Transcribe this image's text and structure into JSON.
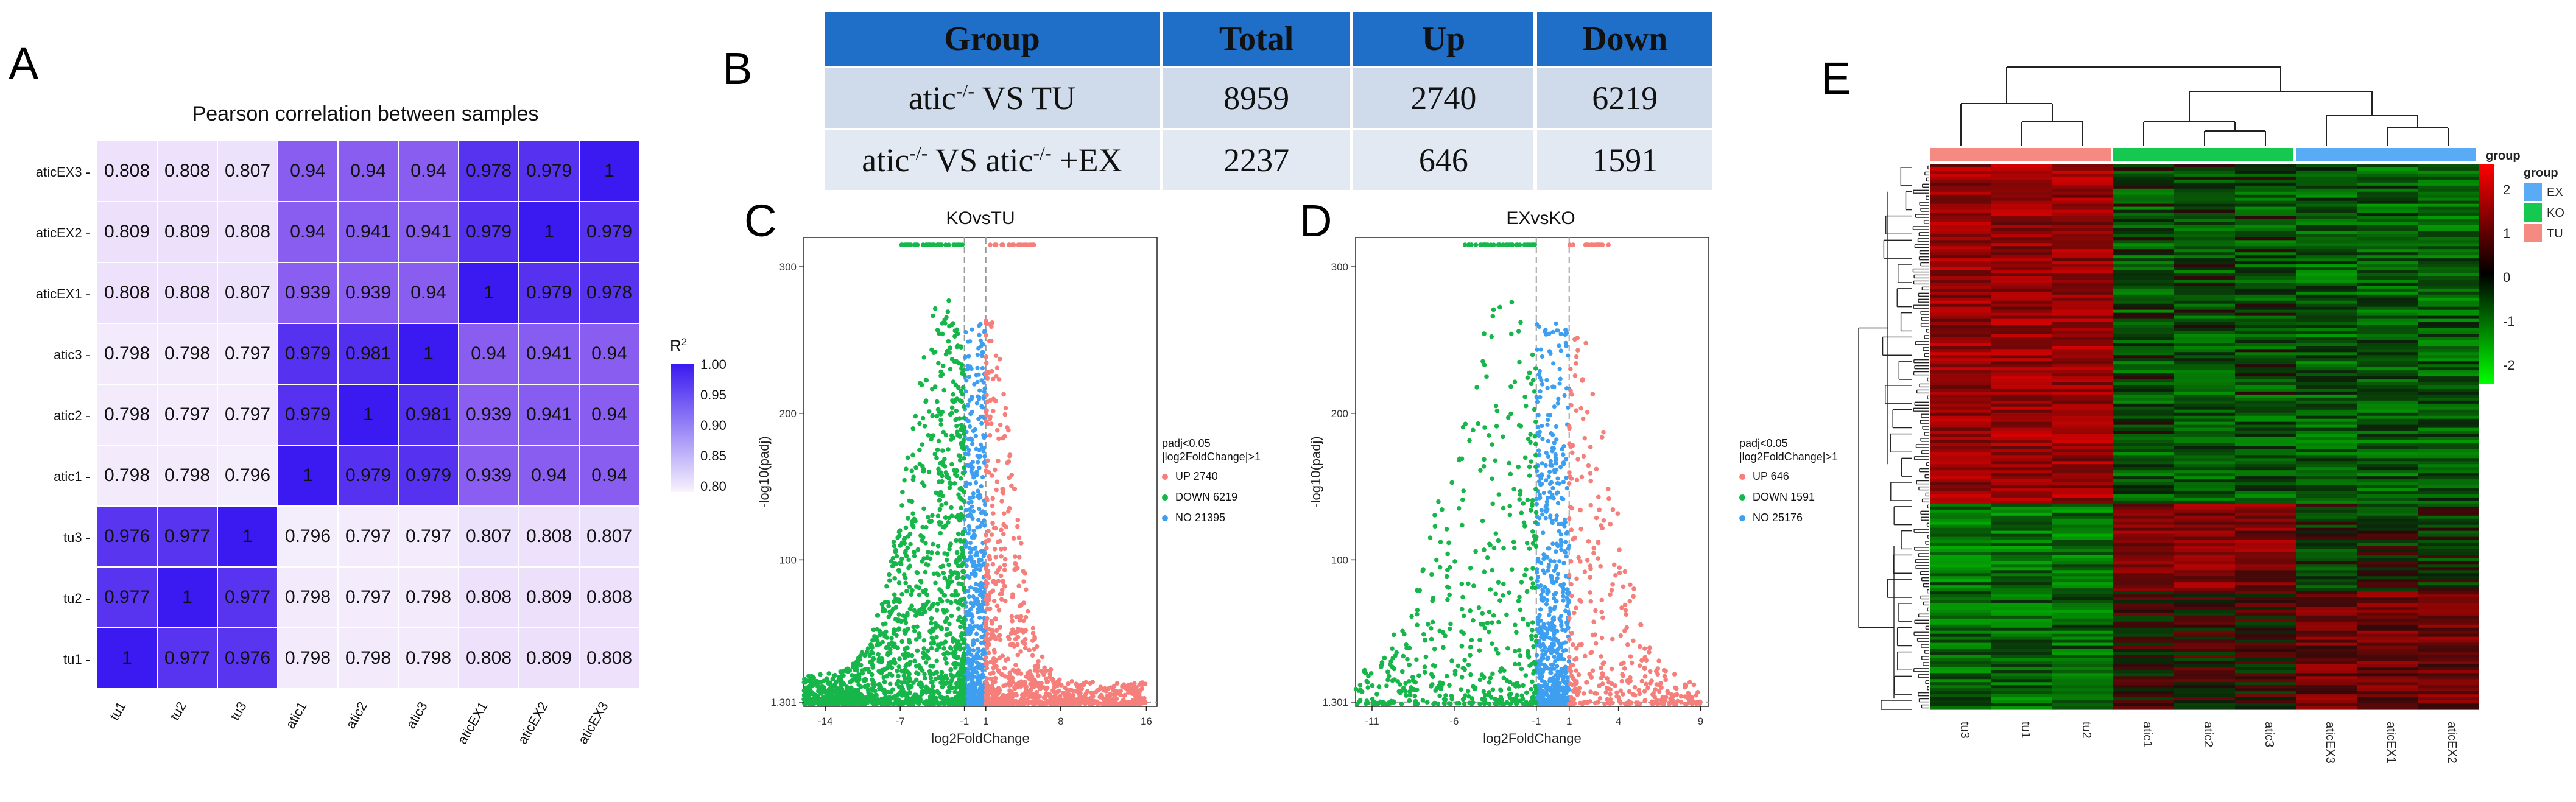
{
  "panel_letters": {
    "a": "A",
    "b": "B",
    "c": "C",
    "d": "D",
    "e": "E"
  },
  "panel_a": {
    "title": "Pearson correlation between samples",
    "rows_top_to_bottom": [
      "aticEX3",
      "aticEX2",
      "aticEX1",
      "atic3",
      "atic2",
      "atic1",
      "tu3",
      "tu2",
      "tu1"
    ],
    "columns": [
      "tu1",
      "tu2",
      "tu3",
      "atic1",
      "atic2",
      "atic3",
      "aticEX1",
      "aticEX2",
      "aticEX3"
    ],
    "values": [
      [
        "0.808",
        "0.808",
        "0.807",
        "0.94",
        "0.94",
        "0.94",
        "0.978",
        "0.979",
        "1"
      ],
      [
        "0.809",
        "0.809",
        "0.808",
        "0.94",
        "0.941",
        "0.941",
        "0.979",
        "1",
        "0.979"
      ],
      [
        "0.808",
        "0.808",
        "0.807",
        "0.939",
        "0.939",
        "0.94",
        "1",
        "0.979",
        "0.978"
      ],
      [
        "0.798",
        "0.798",
        "0.797",
        "0.979",
        "0.981",
        "1",
        "0.94",
        "0.941",
        "0.94"
      ],
      [
        "0.798",
        "0.797",
        "0.797",
        "0.979",
        "1",
        "0.981",
        "0.939",
        "0.941",
        "0.94"
      ],
      [
        "0.798",
        "0.798",
        "0.796",
        "1",
        "0.979",
        "0.979",
        "0.939",
        "0.94",
        "0.94"
      ],
      [
        "0.976",
        "0.977",
        "1",
        "0.796",
        "0.797",
        "0.797",
        "0.807",
        "0.808",
        "0.807"
      ],
      [
        "0.977",
        "1",
        "0.977",
        "0.798",
        "0.797",
        "0.798",
        "0.808",
        "0.809",
        "0.808"
      ],
      [
        "1",
        "0.977",
        "0.976",
        "0.798",
        "0.798",
        "0.798",
        "0.808",
        "0.809",
        "0.808"
      ]
    ],
    "legend": {
      "title": "R",
      "title_sup": "2",
      "ticks": [
        "1.00",
        "0.95",
        "0.90",
        "0.85",
        "0.80"
      ]
    },
    "colors": {
      "low": "#f8f3fd",
      "high": "#3a1af0"
    }
  },
  "panel_b": {
    "headers": [
      "Group",
      "Total",
      "Up",
      "Down"
    ],
    "rows": [
      {
        "group": "atic",
        "group_sup": "-/-",
        "group_rest": " VS TU",
        "total": "8959",
        "up": "2740",
        "down": "6219"
      },
      {
        "group": "atic",
        "group_sup": "-/-",
        "group_mid": " VS atic",
        "group_sup2": "-/-",
        "group_rest": " +EX",
        "total": "2237",
        "up": "646",
        "down": "1591"
      }
    ]
  },
  "volcano_c": {
    "title": "KOvsTU",
    "xlabel": "log2FoldChange",
    "ylabel": "-log10(padj)",
    "xticks": [
      "-14",
      "-7",
      "-1",
      "1",
      "8",
      "16"
    ],
    "yticks": [
      "1.301",
      "100",
      "200",
      "300"
    ],
    "legend_title_1": "padj<0.05",
    "legend_title_2": "|log2FoldChange|>1",
    "legend": [
      {
        "label": "UP 2740",
        "color": "#f57f7a"
      },
      {
        "label": "DOWN 6219",
        "color": "#17b64a"
      },
      {
        "label": "NO 21395",
        "color": "#3e9ff0"
      }
    ]
  },
  "volcano_d": {
    "title": "EXvsKO",
    "xlabel": "log2FoldChange",
    "ylabel": "-log10(padj)",
    "xticks": [
      "-11",
      "-6",
      "-1",
      "1",
      "4",
      "9"
    ],
    "yticks": [
      "1.301",
      "100",
      "200",
      "300"
    ],
    "legend_title_1": "padj<0.05",
    "legend_title_2": "|log2FoldChange|>1",
    "legend": [
      {
        "label": "UP 646",
        "color": "#f57f7a"
      },
      {
        "label": "DOWN 1591",
        "color": "#17b64a"
      },
      {
        "label": "NO 25176",
        "color": "#3e9ff0"
      }
    ]
  },
  "panel_e": {
    "columns": [
      "tu3",
      "tu1",
      "tu2",
      "atic1",
      "atic2",
      "atic3",
      "aticEX3",
      "aticEX1",
      "aticEX2"
    ],
    "group_label": "group",
    "color_scale_ticks": [
      "2",
      "1",
      "0",
      "-1",
      "-2"
    ],
    "group_legend": [
      {
        "label": "EX",
        "color": "#5aabf5"
      },
      {
        "label": "KO",
        "color": "#14c850"
      },
      {
        "label": "TU",
        "color": "#f58a82"
      }
    ]
  }
}
